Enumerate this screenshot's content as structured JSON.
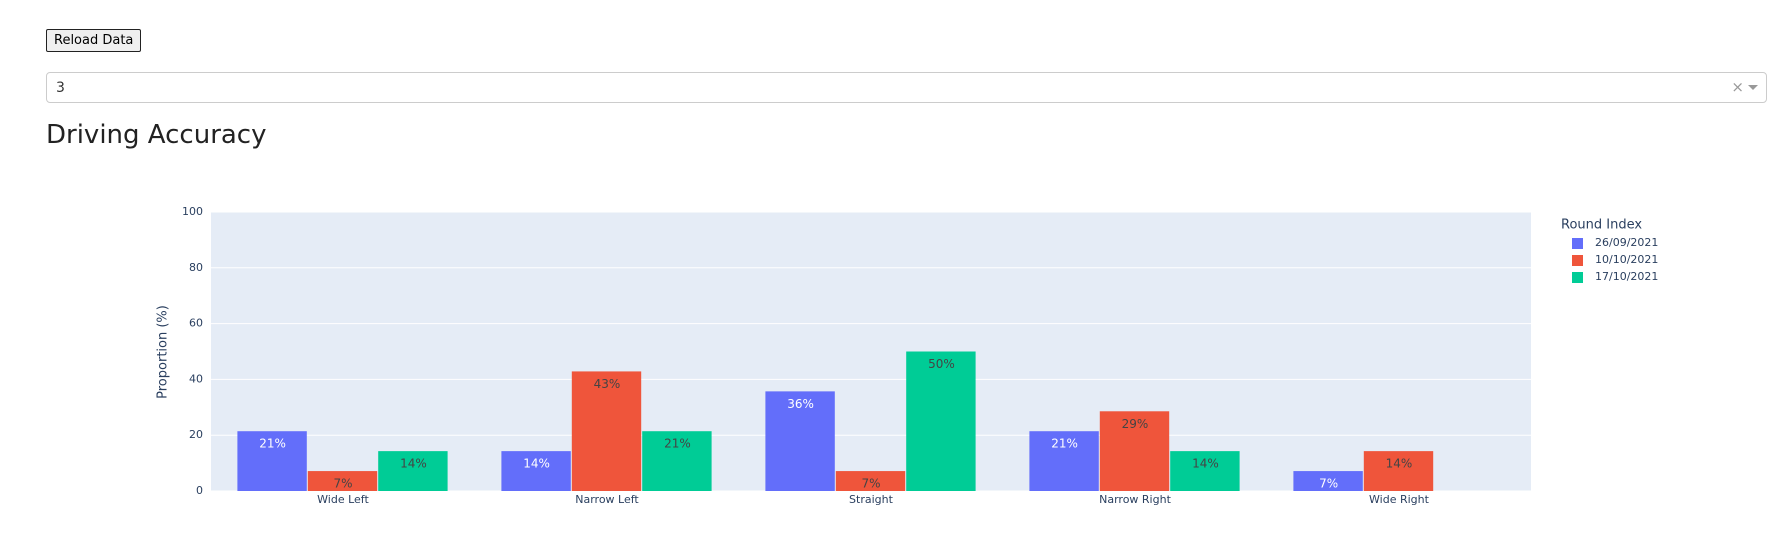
{
  "controls": {
    "button": "Reload Data",
    "dropdown_value": "3"
  },
  "heading": "Driving Accuracy",
  "chart_data": {
    "type": "bar",
    "y_label": "Proportion (%)",
    "legend_title": "Round Index",
    "categories": [
      "Wide Left",
      "Narrow Left",
      "Straight",
      "Narrow Right",
      "Wide Right"
    ],
    "series": [
      {
        "name": "26/09/2021",
        "color": "#636efa",
        "label_color": "#ffffff",
        "values": [
          21.43,
          14.29,
          35.71,
          21.43,
          7.14
        ],
        "value_labels": [
          "21%",
          "14%",
          "36%",
          "21%",
          "7%"
        ]
      },
      {
        "name": "10/10/2021",
        "color": "#ef553b",
        "label_color": "#444444",
        "values": [
          7.14,
          42.86,
          7.14,
          28.57,
          14.29
        ],
        "value_labels": [
          "7%",
          "43%",
          "7%",
          "29%",
          "14%"
        ]
      },
      {
        "name": "17/10/2021",
        "color": "#00cc96",
        "label_color": "#444444",
        "values": [
          14.29,
          21.43,
          50,
          14.29,
          null
        ],
        "value_labels": [
          "14%",
          "21%",
          "50%",
          "14%",
          null
        ]
      }
    ],
    "ylim": [
      0,
      100
    ],
    "yticks": [
      0,
      20,
      40,
      60,
      80,
      100
    ],
    "grid": true,
    "legend": "right"
  }
}
